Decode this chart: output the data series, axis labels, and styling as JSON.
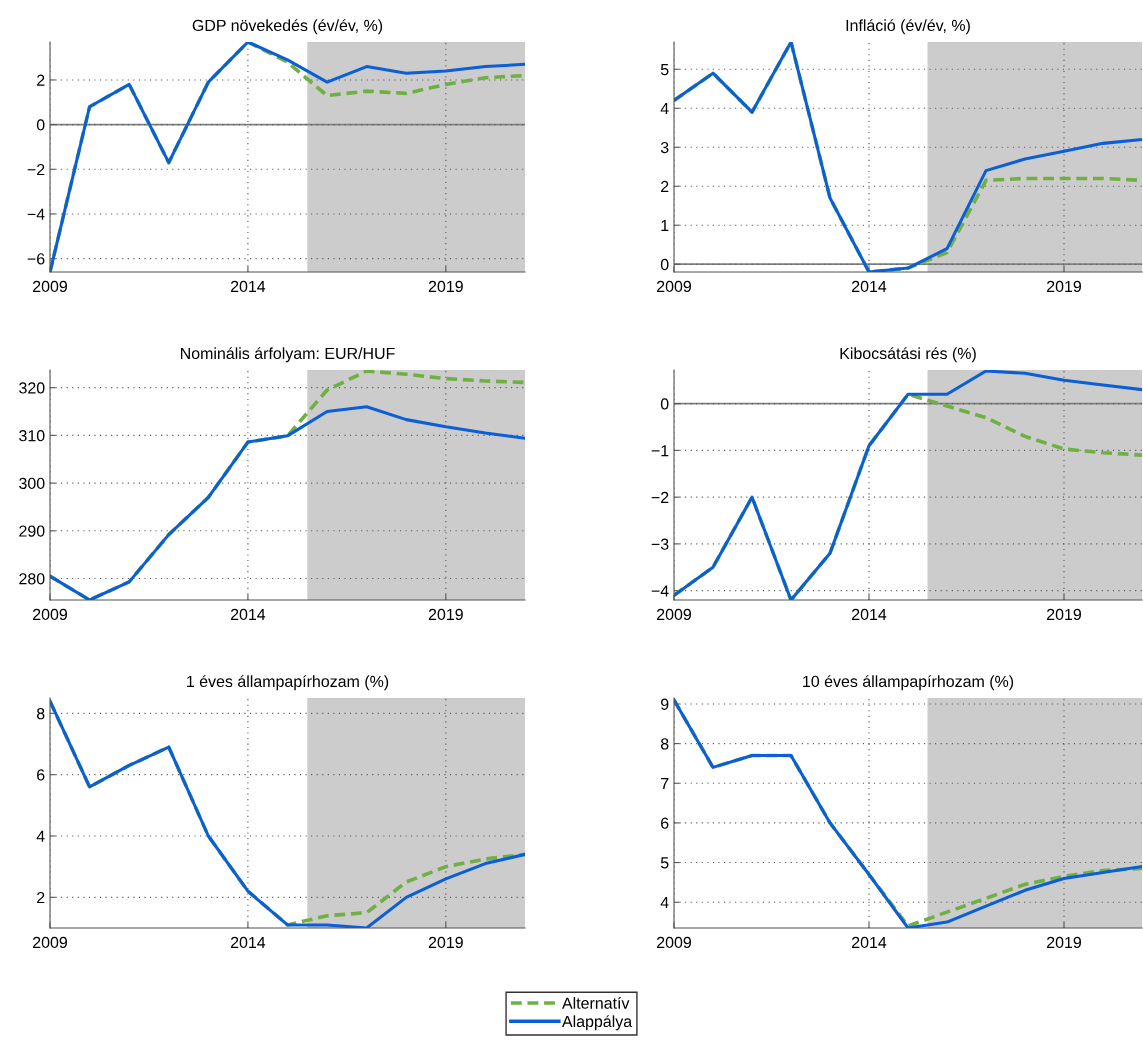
{
  "chart_data": [
    {
      "type": "line",
      "title": "GDP növekedés (év/év, %)",
      "x": [
        2009,
        2010,
        2011,
        2012,
        2013,
        2014,
        2015,
        2016,
        2017,
        2018,
        2019,
        2020,
        2021
      ],
      "xlim": [
        2009,
        2021
      ],
      "xticks": [
        2009,
        2014,
        2019
      ],
      "ylim": [
        -6.6,
        3.7
      ],
      "yticks": [
        {
          "value": -6,
          "label": "−6"
        },
        {
          "value": -4,
          "label": "−4"
        },
        {
          "value": -2,
          "label": "−2"
        },
        0,
        2
      ],
      "grid": true,
      "legend": "bottom",
      "series": [
        {
          "name": "Alternatív",
          "color": "#6fb043",
          "line_style": "dashed",
          "values": [
            -6.6,
            0.8,
            1.8,
            -1.7,
            1.9,
            3.7,
            2.8,
            1.3,
            1.5,
            1.4,
            1.8,
            2.1,
            2.2
          ]
        },
        {
          "name": "Alappálya",
          "color": "#0a5fd7",
          "line_style": "solid",
          "values": [
            -6.6,
            0.8,
            1.8,
            -1.7,
            1.9,
            3.7,
            2.9,
            1.9,
            2.6,
            2.3,
            2.4,
            2.6,
            2.7
          ]
        }
      ],
      "bands": [
        {
          "axis": "x",
          "from": 2015.5,
          "to": 2021,
          "color": "#cccccc"
        }
      ],
      "ref_lines": [
        {
          "axis": "y",
          "value": 0,
          "color": "#808080"
        }
      ]
    },
    {
      "type": "line",
      "title": "Infláció (év/év, %)",
      "x": [
        2009,
        2010,
        2011,
        2012,
        2013,
        2014,
        2015,
        2016,
        2017,
        2018,
        2019,
        2020,
        2021
      ],
      "xlim": [
        2009,
        2021
      ],
      "xticks": [
        2009,
        2014,
        2019
      ],
      "ylim": [
        -0.2,
        5.7
      ],
      "yticks": [
        0,
        1,
        2,
        3,
        4,
        5
      ],
      "grid": true,
      "series": [
        {
          "color": "#6fb043",
          "line_style": "dashed",
          "values": [
            4.2,
            4.9,
            3.9,
            5.7,
            1.7,
            -0.2,
            -0.1,
            0.3,
            2.15,
            2.2,
            2.2,
            2.2,
            2.15
          ]
        },
        {
          "color": "#0a5fd7",
          "line_style": "solid",
          "values": [
            4.2,
            4.9,
            3.9,
            5.7,
            1.7,
            -0.2,
            -0.1,
            0.4,
            2.4,
            2.7,
            2.9,
            3.1,
            3.2
          ]
        }
      ],
      "bands": [
        {
          "axis": "x",
          "from": 2015.5,
          "to": 2021,
          "color": "#cccccc"
        }
      ],
      "ref_lines": [
        {
          "axis": "y",
          "value": 0,
          "color": "#808080"
        }
      ]
    },
    {
      "type": "line",
      "title": "Nominális árfolyam: EUR/HUF",
      "x": [
        2009,
        2010,
        2011,
        2012,
        2013,
        2014,
        2015,
        2016,
        2017,
        2018,
        2019,
        2020,
        2021
      ],
      "xlim": [
        2009,
        2021
      ],
      "xticks": [
        2009,
        2014,
        2019
      ],
      "ylim": [
        275.5,
        323.7
      ],
      "yticks": [
        280,
        290,
        300,
        310,
        320
      ],
      "grid": true,
      "series": [
        {
          "color": "#6fb043",
          "line_style": "dashed",
          "values": [
            280.5,
            275.5,
            279.3,
            289.2,
            297,
            308.6,
            309.9,
            319.5,
            323.5,
            322.8,
            321.9,
            321.4,
            321.1
          ]
        },
        {
          "color": "#0a5fd7",
          "line_style": "solid",
          "values": [
            280.5,
            275.5,
            279.3,
            289.2,
            297,
            308.6,
            309.9,
            315,
            316,
            313.3,
            311.8,
            310.5,
            309.4
          ]
        }
      ],
      "bands": [
        {
          "axis": "x",
          "from": 2015.5,
          "to": 2021,
          "color": "#cccccc"
        }
      ]
    },
    {
      "type": "line",
      "title": "Kibocsátási rés (%)",
      "x": [
        2009,
        2010,
        2011,
        2012,
        2013,
        2014,
        2015,
        2016,
        2017,
        2018,
        2019,
        2020,
        2021
      ],
      "xlim": [
        2009,
        2021
      ],
      "xticks": [
        2009,
        2014,
        2019
      ],
      "ylim": [
        -4.2,
        0.72
      ],
      "yticks": [
        {
          "value": -4,
          "label": "−4"
        },
        {
          "value": -3,
          "label": "−3"
        },
        {
          "value": -2,
          "label": "−2"
        },
        {
          "value": -1,
          "label": "−1"
        },
        0
      ],
      "grid": true,
      "series": [
        {
          "color": "#6fb043",
          "line_style": "dashed",
          "values": [
            -4.1,
            -3.5,
            -2.0,
            -4.2,
            -3.2,
            -0.9,
            0.2,
            -0.05,
            -0.3,
            -0.7,
            -0.97,
            -1.05,
            -1.1
          ]
        },
        {
          "color": "#0a5fd7",
          "line_style": "solid",
          "values": [
            -4.1,
            -3.5,
            -2.0,
            -4.2,
            -3.2,
            -0.9,
            0.2,
            0.2,
            0.7,
            0.65,
            0.5,
            0.4,
            0.3
          ]
        }
      ],
      "bands": [
        {
          "axis": "x",
          "from": 2015.5,
          "to": 2021,
          "color": "#cccccc"
        }
      ],
      "ref_lines": [
        {
          "axis": "y",
          "value": 0,
          "color": "#808080"
        }
      ]
    },
    {
      "type": "line",
      "title": "1 éves állampapírhozam (%)",
      "x": [
        2009,
        2010,
        2011,
        2012,
        2013,
        2014,
        2015,
        2016,
        2017,
        2018,
        2019,
        2020,
        2021
      ],
      "xlim": [
        2009,
        2021
      ],
      "xticks": [
        2009,
        2014,
        2019
      ],
      "ylim": [
        1.0,
        8.5
      ],
      "yticks": [
        2,
        4,
        6,
        8
      ],
      "grid": true,
      "series": [
        {
          "color": "#6fb043",
          "line_style": "dashed",
          "values": [
            8.4,
            5.6,
            6.3,
            6.9,
            4.0,
            2.2,
            1.1,
            1.4,
            1.5,
            2.5,
            3.0,
            3.25,
            3.4
          ]
        },
        {
          "color": "#0a5fd7",
          "line_style": "solid",
          "values": [
            8.4,
            5.6,
            6.3,
            6.9,
            4.0,
            2.2,
            1.1,
            1.1,
            1.0,
            2.0,
            2.6,
            3.1,
            3.4
          ]
        }
      ],
      "bands": [
        {
          "axis": "x",
          "from": 2015.5,
          "to": 2021,
          "color": "#cccccc"
        }
      ]
    },
    {
      "type": "line",
      "title": "10 éves állampapírhozam (%)",
      "x": [
        2009,
        2010,
        2011,
        2012,
        2013,
        2014,
        2015,
        2016,
        2017,
        2018,
        2019,
        2020,
        2021
      ],
      "xlim": [
        2009,
        2021
      ],
      "xticks": [
        2009,
        2014,
        2019
      ],
      "ylim": [
        3.35,
        9.15
      ],
      "yticks": [
        4,
        5,
        6,
        7,
        8,
        9
      ],
      "grid": true,
      "series": [
        {
          "color": "#6fb043",
          "line_style": "dashed",
          "values": [
            9.1,
            7.4,
            7.7,
            7.7,
            6.0,
            4.7,
            3.4,
            3.75,
            4.1,
            4.45,
            4.65,
            4.8,
            4.85
          ]
        },
        {
          "color": "#0a5fd7",
          "line_style": "solid",
          "values": [
            9.1,
            7.4,
            7.7,
            7.7,
            6.0,
            4.7,
            3.35,
            3.5,
            3.9,
            4.3,
            4.6,
            4.75,
            4.9
          ]
        }
      ],
      "bands": [
        {
          "axis": "x",
          "from": 2015.5,
          "to": 2021,
          "color": "#cccccc"
        }
      ]
    }
  ]
}
